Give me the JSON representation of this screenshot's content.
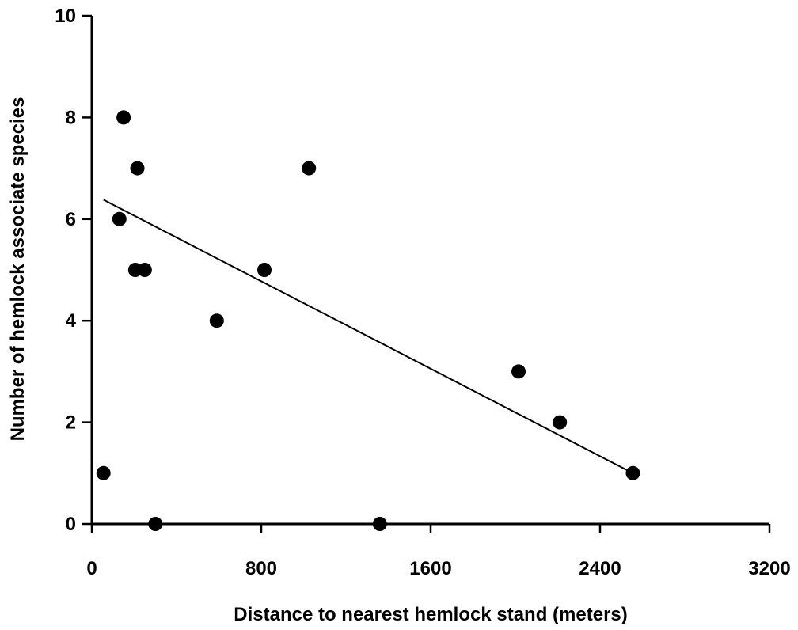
{
  "chart_data": {
    "type": "scatter",
    "title": "",
    "xlabel": "Distance to nearest hemlock stand (meters)",
    "ylabel": "Number of hemlock associate species",
    "xlim": [
      0,
      3200
    ],
    "ylim": [
      0,
      10
    ],
    "xticks": [
      0,
      800,
      1600,
      2400,
      3200
    ],
    "yticks": [
      0,
      2,
      4,
      6,
      8,
      10
    ],
    "grid": false,
    "series": [
      {
        "points": [
          {
            "x": 55,
            "y": 1
          },
          {
            "x": 130,
            "y": 6
          },
          {
            "x": 150,
            "y": 8
          },
          {
            "x": 205,
            "y": 5
          },
          {
            "x": 215,
            "y": 7
          },
          {
            "x": 250,
            "y": 5
          },
          {
            "x": 300,
            "y": 0
          },
          {
            "x": 590,
            "y": 4
          },
          {
            "x": 815,
            "y": 5
          },
          {
            "x": 1025,
            "y": 7
          },
          {
            "x": 1360,
            "y": 0
          },
          {
            "x": 2015,
            "y": 3
          },
          {
            "x": 2210,
            "y": 2
          },
          {
            "x": 2555,
            "y": 1
          }
        ]
      }
    ],
    "trendline": {
      "x": [
        55,
        2555
      ],
      "y": [
        6.38,
        1.0
      ]
    }
  }
}
